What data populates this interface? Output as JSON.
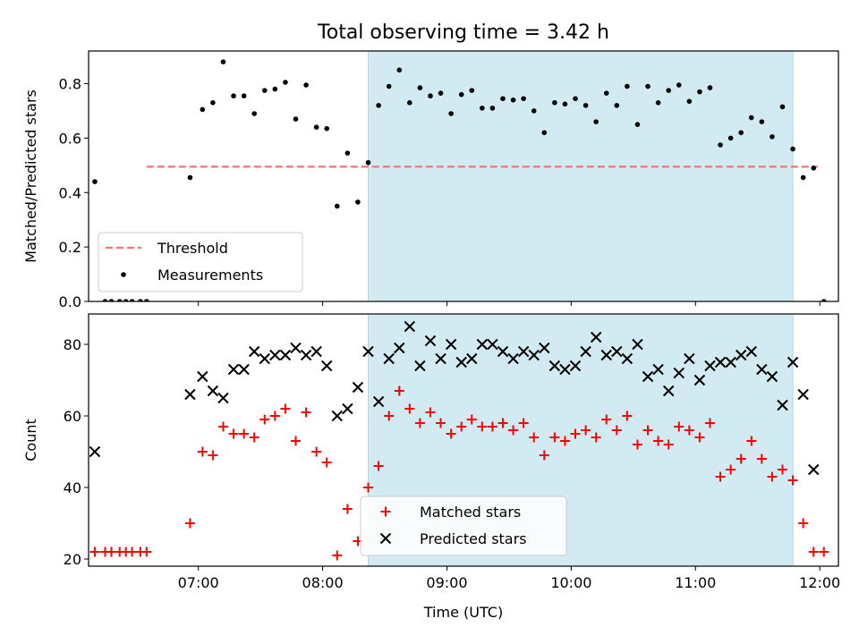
{
  "title": "Total observing time = 3.42 h",
  "chart_data": [
    {
      "type": "scatter",
      "ylabel": "Matched/Predicted stars",
      "xlabel": "",
      "xlim": [
        "06:07",
        "12:09"
      ],
      "ylim": [
        0,
        0.92
      ],
      "yticks": [
        0.0,
        0.2,
        0.4,
        0.6,
        0.8
      ],
      "ytick_labels": [
        "0.0",
        "0.2",
        "0.4",
        "0.6",
        "0.8"
      ],
      "xticks": [
        "07:00",
        "08:00",
        "09:00",
        "10:00",
        "11:00",
        "12:00"
      ],
      "shaded_interval": {
        "start": "08:22",
        "end": "11:47",
        "color": "#add8e6"
      },
      "legend": {
        "placement": "lower-left"
      },
      "threshold": {
        "name": "Threshold",
        "value": 0.495,
        "x_start": "06:35",
        "x_end": "11:59",
        "color": "#ff7070",
        "style": "dashed"
      },
      "series": [
        {
          "name": "Measurements",
          "color": "#000000",
          "marker": "dot",
          "points": [
            [
              "06:10",
              0.44
            ],
            [
              "06:15",
              0.0
            ],
            [
              "06:18",
              0.0
            ],
            [
              "06:22",
              0.0
            ],
            [
              "06:25",
              0.0
            ],
            [
              "06:28",
              0.0
            ],
            [
              "06:32",
              0.0
            ],
            [
              "06:35",
              0.0
            ],
            [
              "06:56",
              0.455
            ],
            [
              "07:02",
              0.705
            ],
            [
              "07:07",
              0.73
            ],
            [
              "07:12",
              0.88
            ],
            [
              "07:17",
              0.755
            ],
            [
              "07:22",
              0.755
            ],
            [
              "07:27",
              0.69
            ],
            [
              "07:32",
              0.775
            ],
            [
              "07:37",
              0.78
            ],
            [
              "07:42",
              0.805
            ],
            [
              "07:47",
              0.67
            ],
            [
              "07:52",
              0.795
            ],
            [
              "07:57",
              0.64
            ],
            [
              "08:02",
              0.635
            ],
            [
              "08:07",
              0.35
            ],
            [
              "08:12",
              0.545
            ],
            [
              "08:17",
              0.365
            ],
            [
              "08:22",
              0.51
            ],
            [
              "08:27",
              0.72
            ],
            [
              "08:32",
              0.79
            ],
            [
              "08:37",
              0.85
            ],
            [
              "08:42",
              0.73
            ],
            [
              "08:47",
              0.785
            ],
            [
              "08:52",
              0.755
            ],
            [
              "08:57",
              0.765
            ],
            [
              "09:02",
              0.69
            ],
            [
              "09:07",
              0.76
            ],
            [
              "09:12",
              0.775
            ],
            [
              "09:17",
              0.71
            ],
            [
              "09:22",
              0.71
            ],
            [
              "09:27",
              0.745
            ],
            [
              "09:32",
              0.74
            ],
            [
              "09:37",
              0.745
            ],
            [
              "09:42",
              0.7
            ],
            [
              "09:47",
              0.62
            ],
            [
              "09:52",
              0.73
            ],
            [
              "09:57",
              0.725
            ],
            [
              "10:02",
              0.745
            ],
            [
              "10:07",
              0.72
            ],
            [
              "10:12",
              0.66
            ],
            [
              "10:17",
              0.765
            ],
            [
              "10:22",
              0.72
            ],
            [
              "10:27",
              0.79
            ],
            [
              "10:32",
              0.65
            ],
            [
              "10:37",
              0.79
            ],
            [
              "10:42",
              0.73
            ],
            [
              "10:47",
              0.775
            ],
            [
              "10:52",
              0.795
            ],
            [
              "10:57",
              0.735
            ],
            [
              "11:02",
              0.77
            ],
            [
              "11:07",
              0.785
            ],
            [
              "11:12",
              0.575
            ],
            [
              "11:17",
              0.6
            ],
            [
              "11:22",
              0.62
            ],
            [
              "11:27",
              0.675
            ],
            [
              "11:32",
              0.66
            ],
            [
              "11:37",
              0.605
            ],
            [
              "11:42",
              0.715
            ],
            [
              "11:47",
              0.56
            ],
            [
              "11:52",
              0.455
            ],
            [
              "11:57",
              0.49
            ],
            [
              "12:02",
              0.0
            ]
          ]
        }
      ]
    },
    {
      "type": "scatter",
      "ylabel": "Count",
      "xlabel": "Time (UTC)",
      "xlim": [
        "06:07",
        "12:09"
      ],
      "ylim": [
        18,
        88.5
      ],
      "yticks": [
        20,
        40,
        60,
        80
      ],
      "ytick_labels": [
        "20",
        "40",
        "60",
        "80"
      ],
      "xticks": [
        "07:00",
        "08:00",
        "09:00",
        "10:00",
        "11:00",
        "12:00"
      ],
      "shaded_interval": {
        "start": "08:22",
        "end": "11:47",
        "color": "#add8e6"
      },
      "legend": {
        "placement": "lower-center"
      },
      "series": [
        {
          "name": "Matched stars",
          "color": "#ff0000",
          "marker": "plus",
          "points": [
            [
              "06:10",
              22
            ],
            [
              "06:15",
              22
            ],
            [
              "06:18",
              22
            ],
            [
              "06:22",
              22
            ],
            [
              "06:25",
              22
            ],
            [
              "06:28",
              22
            ],
            [
              "06:32",
              22
            ],
            [
              "06:35",
              22
            ],
            [
              "06:56",
              30
            ],
            [
              "07:02",
              50
            ],
            [
              "07:07",
              49
            ],
            [
              "07:12",
              57
            ],
            [
              "07:17",
              55
            ],
            [
              "07:22",
              55
            ],
            [
              "07:27",
              54
            ],
            [
              "07:32",
              59
            ],
            [
              "07:37",
              60
            ],
            [
              "07:42",
              62
            ],
            [
              "07:47",
              53
            ],
            [
              "07:52",
              61
            ],
            [
              "07:57",
              50
            ],
            [
              "08:02",
              47
            ],
            [
              "08:07",
              21
            ],
            [
              "08:12",
              34
            ],
            [
              "08:17",
              25
            ],
            [
              "08:22",
              40
            ],
            [
              "08:27",
              46
            ],
            [
              "08:32",
              60
            ],
            [
              "08:37",
              67
            ],
            [
              "08:42",
              62
            ],
            [
              "08:47",
              58
            ],
            [
              "08:52",
              61
            ],
            [
              "08:57",
              58
            ],
            [
              "09:02",
              55
            ],
            [
              "09:07",
              57
            ],
            [
              "09:12",
              59
            ],
            [
              "09:17",
              57
            ],
            [
              "09:22",
              57
            ],
            [
              "09:27",
              58
            ],
            [
              "09:32",
              56
            ],
            [
              "09:37",
              58
            ],
            [
              "09:42",
              54
            ],
            [
              "09:47",
              49
            ],
            [
              "09:52",
              54
            ],
            [
              "09:57",
              53
            ],
            [
              "10:02",
              55
            ],
            [
              "10:07",
              56
            ],
            [
              "10:12",
              54
            ],
            [
              "10:17",
              59
            ],
            [
              "10:22",
              56
            ],
            [
              "10:27",
              60
            ],
            [
              "10:32",
              52
            ],
            [
              "10:37",
              56
            ],
            [
              "10:42",
              53
            ],
            [
              "10:47",
              52
            ],
            [
              "10:52",
              57
            ],
            [
              "10:57",
              56
            ],
            [
              "11:02",
              54
            ],
            [
              "11:07",
              58
            ],
            [
              "11:12",
              43
            ],
            [
              "11:17",
              45
            ],
            [
              "11:22",
              48
            ],
            [
              "11:27",
              53
            ],
            [
              "11:32",
              48
            ],
            [
              "11:37",
              43
            ],
            [
              "11:42",
              45
            ],
            [
              "11:47",
              42
            ],
            [
              "11:52",
              30
            ],
            [
              "11:57",
              22
            ],
            [
              "12:02",
              22
            ]
          ]
        },
        {
          "name": "Predicted stars",
          "color": "#000000",
          "marker": "x",
          "points": [
            [
              "06:10",
              50
            ],
            [
              "06:56",
              66
            ],
            [
              "07:02",
              71
            ],
            [
              "07:07",
              67
            ],
            [
              "07:12",
              65
            ],
            [
              "07:17",
              73
            ],
            [
              "07:22",
              73
            ],
            [
              "07:27",
              78
            ],
            [
              "07:32",
              76
            ],
            [
              "07:37",
              77
            ],
            [
              "07:42",
              77
            ],
            [
              "07:47",
              79
            ],
            [
              "07:52",
              77
            ],
            [
              "07:57",
              78
            ],
            [
              "08:02",
              74
            ],
            [
              "08:07",
              60
            ],
            [
              "08:12",
              62
            ],
            [
              "08:17",
              68
            ],
            [
              "08:22",
              78
            ],
            [
              "08:27",
              64
            ],
            [
              "08:32",
              76
            ],
            [
              "08:37",
              79
            ],
            [
              "08:42",
              85
            ],
            [
              "08:47",
              74
            ],
            [
              "08:52",
              81
            ],
            [
              "08:57",
              76
            ],
            [
              "09:02",
              80
            ],
            [
              "09:07",
              75
            ],
            [
              "09:12",
              76
            ],
            [
              "09:17",
              80
            ],
            [
              "09:22",
              80
            ],
            [
              "09:27",
              78
            ],
            [
              "09:32",
              76
            ],
            [
              "09:37",
              78
            ],
            [
              "09:42",
              77
            ],
            [
              "09:47",
              79
            ],
            [
              "09:52",
              74
            ],
            [
              "09:57",
              73
            ],
            [
              "10:02",
              74
            ],
            [
              "10:07",
              78
            ],
            [
              "10:12",
              82
            ],
            [
              "10:17",
              77
            ],
            [
              "10:22",
              78
            ],
            [
              "10:27",
              76
            ],
            [
              "10:32",
              80
            ],
            [
              "10:37",
              71
            ],
            [
              "10:42",
              73
            ],
            [
              "10:47",
              67
            ],
            [
              "10:52",
              72
            ],
            [
              "10:57",
              76
            ],
            [
              "11:02",
              70
            ],
            [
              "11:07",
              74
            ],
            [
              "11:12",
              75
            ],
            [
              "11:17",
              75
            ],
            [
              "11:22",
              77
            ],
            [
              "11:27",
              78
            ],
            [
              "11:32",
              73
            ],
            [
              "11:37",
              71
            ],
            [
              "11:42",
              63
            ],
            [
              "11:47",
              75
            ],
            [
              "11:52",
              66
            ],
            [
              "11:57",
              45
            ]
          ]
        }
      ]
    }
  ]
}
